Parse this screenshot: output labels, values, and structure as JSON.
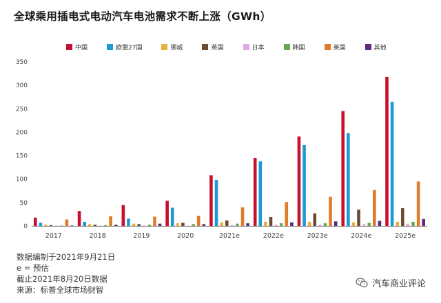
{
  "title": "全球乘用插电式电动汽车电池需求不断上涨（GWh）",
  "notes": [
    "数据编制于2021年9月21日",
    "e = 预估",
    "截止2021年8月20日数据",
    "来源：标普全球市场财智"
  ],
  "brand": {
    "name": "汽车商业评论",
    "icon": "wechat-icon"
  },
  "chart_data": {
    "type": "bar",
    "title": "全球乘用插电式电动汽车电池需求不断上涨（GWh）",
    "categories": [
      "2017",
      "2018",
      "2019",
      "2020",
      "2021e",
      "2022e",
      "2023e",
      "2024e",
      "2025e"
    ],
    "ylim": [
      0,
      350
    ],
    "yticks": [
      0,
      50,
      100,
      150,
      200,
      250,
      300,
      350
    ],
    "grid": false,
    "legend_position": "top",
    "series": [
      {
        "name": "中国",
        "color": "#c8102e",
        "values": [
          18,
          32,
          45,
          54,
          108,
          145,
          191,
          245,
          318
        ]
      },
      {
        "name": "欧盟27国",
        "color": "#1a9ad6",
        "values": [
          7,
          9,
          16,
          39,
          98,
          138,
          173,
          198,
          265
        ]
      },
      {
        "name": "挪威",
        "color": "#e8b040",
        "values": [
          3,
          4,
          5,
          6,
          8,
          9,
          9,
          8,
          9
        ]
      },
      {
        "name": "英国",
        "color": "#6b4a32",
        "values": [
          2,
          3,
          4,
          7,
          12,
          19,
          27,
          35,
          38
        ]
      },
      {
        "name": "日本",
        "color": "#e4a6e6",
        "values": [
          1,
          1,
          1,
          1,
          2,
          3,
          3,
          4,
          5
        ]
      },
      {
        "name": "韩国",
        "color": "#6aa84f",
        "values": [
          1,
          2,
          3,
          4,
          5,
          6,
          6,
          7,
          9
        ]
      },
      {
        "name": "美国",
        "color": "#e07b28",
        "values": [
          14,
          21,
          20,
          22,
          40,
          51,
          62,
          77,
          95
        ]
      },
      {
        "name": "其他",
        "color": "#5c2d7e",
        "values": [
          1,
          3,
          5,
          4,
          6,
          8,
          10,
          11,
          15
        ]
      }
    ]
  }
}
